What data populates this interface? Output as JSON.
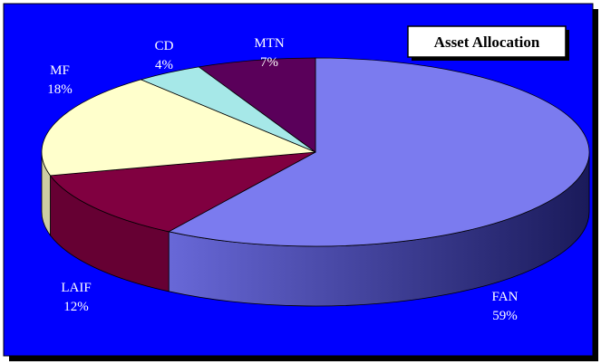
{
  "chart_data": {
    "type": "pie",
    "title": "Asset Allocation",
    "three_d": true,
    "background_color": "#0000ff",
    "slices": [
      {
        "label": "FAN",
        "value": 59,
        "percent_label": "59%",
        "color": "#7b7bef"
      },
      {
        "label": "LAIF",
        "value": 12,
        "percent_label": "12%",
        "color": "#800040"
      },
      {
        "label": "MF",
        "value": 18,
        "percent_label": "18%",
        "color": "#ffffcc"
      },
      {
        "label": "CD",
        "value": 4,
        "percent_label": "4%",
        "color": "#a6e8e8"
      },
      {
        "label": "MTN",
        "value": 7,
        "percent_label": "7%",
        "color": "#5a005a"
      }
    ]
  }
}
